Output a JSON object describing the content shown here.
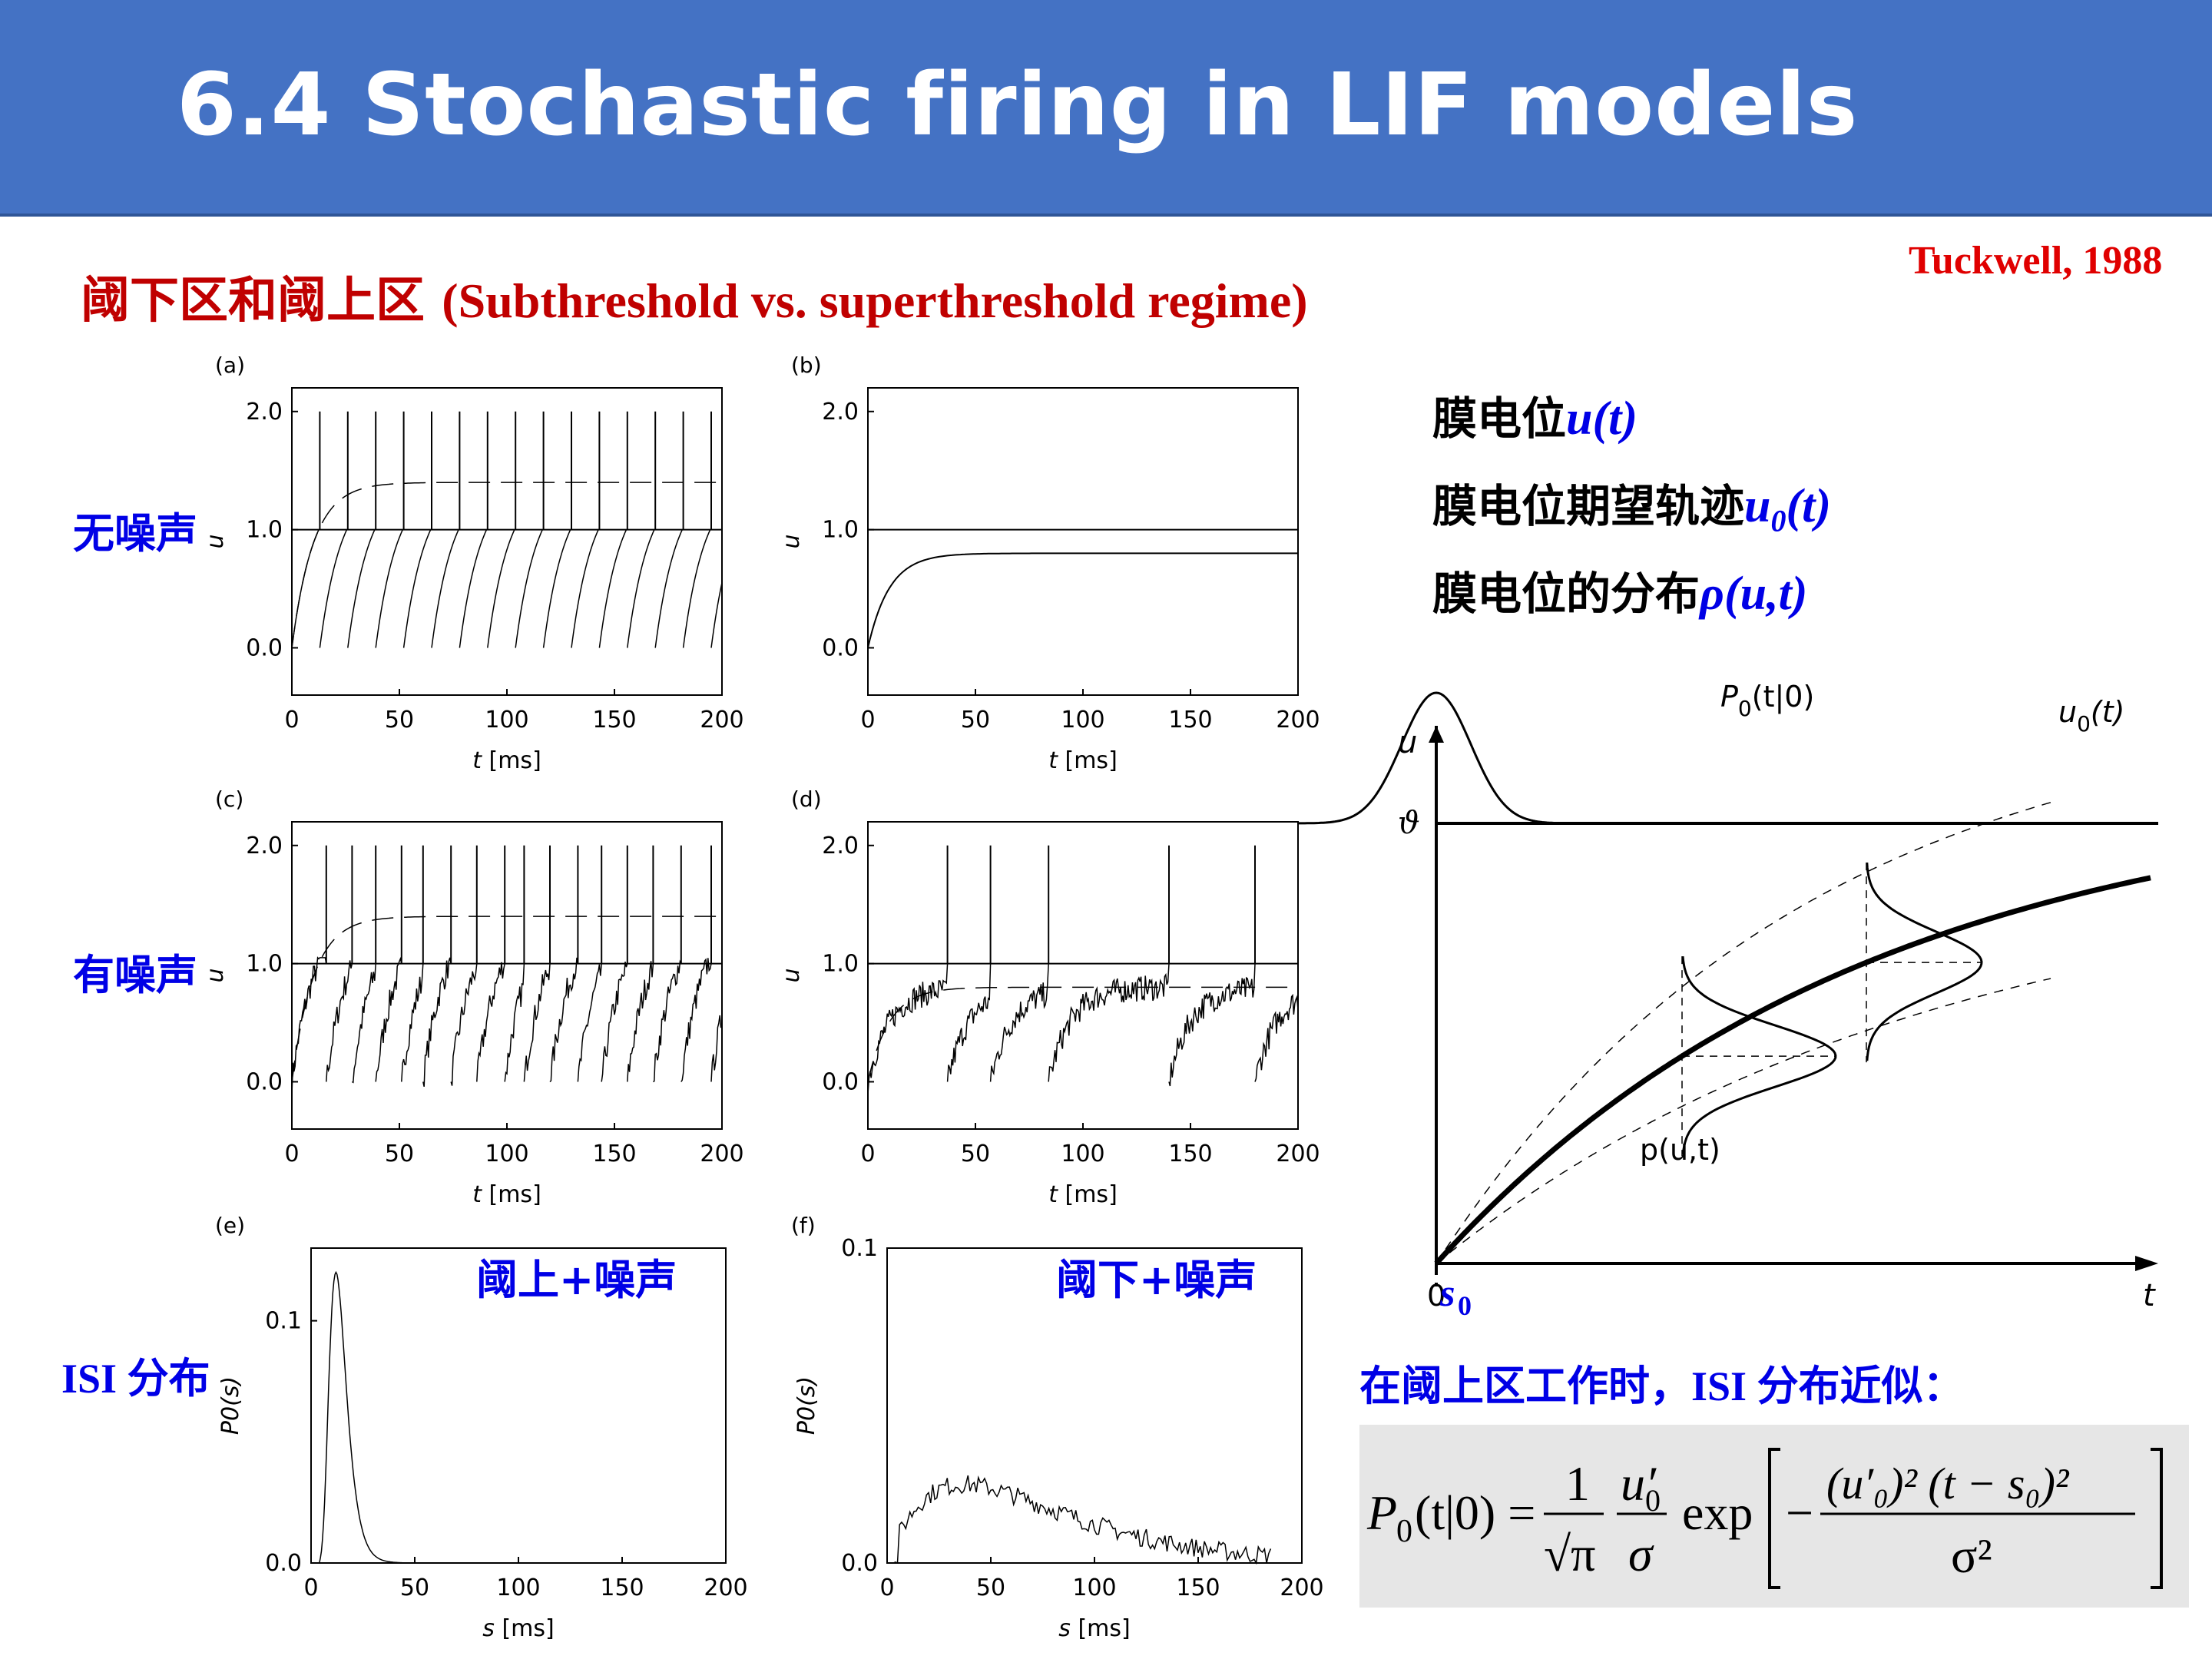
{
  "slide": {
    "title": "6.4 Stochastic firing in LIF models",
    "subtitle_cn": "阈下区和阈上区 ",
    "subtitle_en": "(Subthreshold vs. superthreshold regime)",
    "citation": "Tuckwell, 1988"
  },
  "row_labels": {
    "no_noise": "无噪声",
    "with_noise": "有噪声",
    "isi_en": "ISI ",
    "isi_cn": "分布"
  },
  "legend": {
    "line1_text": "膜电位",
    "line1_sym": "u(t)",
    "line2_text": "膜电位期望轨迹",
    "line2_sym_base": "u",
    "line2_sym_sub": "0",
    "line2_sym_tail": "(t)",
    "line3_text": "膜电位的分布",
    "line3_sym": "ρ(u,t)"
  },
  "overlays": {
    "panel_e": "阈上+噪声",
    "panel_f": "阈下+噪声"
  },
  "note": {
    "part1": "在阈上区工作时，",
    "part2": "ISI ",
    "part3": "分布近似："
  },
  "formula": {
    "lhs": "P",
    "lhs_sub": "0",
    "lhs_args": "(t|0) =",
    "frac1_num": "1",
    "frac1_den": "√π",
    "frac2_num": "u′",
    "frac2_num_sub": "0",
    "frac2_den": "σ",
    "exp": "exp",
    "inner_num": "(u′₀)² (t − s₀)²",
    "inner_den": "σ²",
    "minus": "−"
  },
  "schematic": {
    "u_label": "u",
    "theta_label": "ϑ",
    "zero_label": "0",
    "t_label": "t",
    "s0_label": "s",
    "s0_sub": "0",
    "p0_label": "P",
    "p0_sub": "0",
    "p0_args": "(t|0)",
    "u0_label": "u",
    "u0_sub": "0",
    "u0_args": "(t)",
    "p_label": "p(u,t)"
  },
  "panels": [
    {
      "id": "a",
      "letter": "(a)",
      "xlabel_i": "t",
      "xlabel_rest": " [ms]",
      "ylabel": "u",
      "xticks": [
        "0",
        "50",
        "100",
        "150",
        "200"
      ],
      "yticks": [
        "0.0",
        "1.0",
        "2.0"
      ]
    },
    {
      "id": "b",
      "letter": "(b)",
      "xlabel_i": "t",
      "xlabel_rest": " [ms]",
      "ylabel": "u",
      "xticks": [
        "0",
        "50",
        "100",
        "150",
        "200"
      ],
      "yticks": [
        "0.0",
        "1.0",
        "2.0"
      ]
    },
    {
      "id": "c",
      "letter": "(c)",
      "xlabel_i": "t",
      "xlabel_rest": " [ms]",
      "ylabel": "u",
      "xticks": [
        "0",
        "50",
        "100",
        "150",
        "200"
      ],
      "yticks": [
        "0.0",
        "1.0",
        "2.0"
      ]
    },
    {
      "id": "d",
      "letter": "(d)",
      "xlabel_i": "t",
      "xlabel_rest": " [ms]",
      "ylabel": "u",
      "xticks": [
        "0",
        "50",
        "100",
        "150",
        "200"
      ],
      "yticks": [
        "0.0",
        "1.0",
        "2.0"
      ]
    },
    {
      "id": "e",
      "letter": "(e)",
      "xlabel_i": "s",
      "xlabel_rest": " [ms]",
      "ylabel": "P0(s)",
      "xticks": [
        "0",
        "50",
        "100",
        "150",
        "200"
      ],
      "yticks": [
        "0.0",
        "0.1"
      ]
    },
    {
      "id": "f",
      "letter": "(f)",
      "xlabel_i": "s",
      "xlabel_rest": " [ms]",
      "ylabel": "P0(s)",
      "xticks": [
        "0",
        "50",
        "100",
        "150",
        "200"
      ],
      "yticks": [
        "0.0",
        "0.1"
      ]
    }
  ],
  "chart_data": [
    {
      "type": "line",
      "panel": "a",
      "xlabel": "t [ms]",
      "ylabel": "u",
      "xlim": [
        0,
        200
      ],
      "ylim": [
        -0.4,
        2.2
      ],
      "threshold": 1.0,
      "spike_height": 2.0,
      "expected_trajectory_asymptote": 1.4,
      "spike_times": [
        13,
        26,
        39,
        52,
        65,
        78,
        91,
        104,
        117,
        130,
        143,
        156,
        169,
        182,
        195
      ]
    },
    {
      "type": "line",
      "panel": "b",
      "xlabel": "t [ms]",
      "ylabel": "u",
      "xlim": [
        0,
        200
      ],
      "ylim": [
        -0.4,
        2.2
      ],
      "threshold": 1.0,
      "steady_state": 0.8,
      "spike_times": []
    },
    {
      "type": "line",
      "panel": "c",
      "xlabel": "t [ms]",
      "ylabel": "u",
      "xlim": [
        0,
        200
      ],
      "ylim": [
        -0.4,
        2.2
      ],
      "threshold": 1.0,
      "spike_height": 2.0,
      "expected_trajectory_asymptote": 1.4,
      "spike_times": [
        16,
        28,
        39,
        51,
        61,
        74,
        86,
        99,
        108,
        120,
        133,
        144,
        156,
        168,
        181,
        195
      ]
    },
    {
      "type": "line",
      "panel": "d",
      "xlabel": "t [ms]",
      "ylabel": "u",
      "xlim": [
        0,
        200
      ],
      "ylim": [
        -0.4,
        2.2
      ],
      "threshold": 1.0,
      "spike_height": 2.0,
      "expected_trajectory_asymptote": 0.8,
      "spike_times": [
        37,
        57,
        84,
        140,
        180
      ]
    },
    {
      "type": "line",
      "panel": "e",
      "xlabel": "s [ms]",
      "ylabel": "P0(s)",
      "xlim": [
        0,
        200
      ],
      "ylim": [
        0,
        0.13
      ],
      "peak": {
        "x": 12,
        "y": 0.12
      }
    },
    {
      "type": "line",
      "panel": "f",
      "xlabel": "s [ms]",
      "ylabel": "P0(s)",
      "xlim": [
        0,
        200
      ],
      "ylim": [
        0,
        0.1
      ],
      "peak": {
        "x": 37,
        "y": 0.025
      }
    }
  ]
}
